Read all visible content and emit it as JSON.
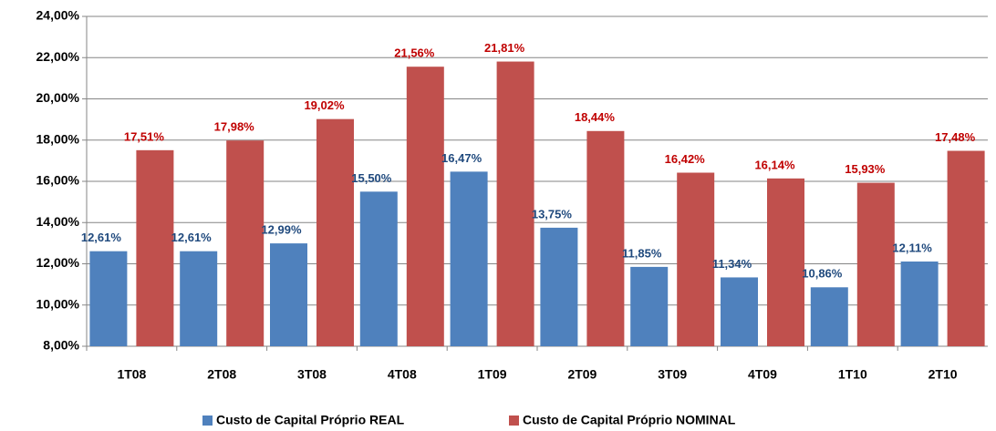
{
  "chart_data": {
    "type": "bar",
    "categories": [
      "1T08",
      "2T08",
      "3T08",
      "4T08",
      "1T09",
      "2T09",
      "3T09",
      "4T09",
      "1T10",
      "2T10"
    ],
    "series": [
      {
        "name": "Custo de Capital Próprio REAL",
        "color": "#4f81bd",
        "label_color": "#1f497d",
        "values": [
          12.61,
          12.61,
          12.99,
          15.5,
          16.47,
          13.75,
          11.85,
          11.34,
          10.86,
          12.11
        ],
        "value_labels": [
          "12,61%",
          "12,61%",
          "12,99%",
          "15,50%",
          "16,47%",
          "13,75%",
          "11,85%",
          "11,34%",
          "10,86%",
          "12,11%"
        ]
      },
      {
        "name": "Custo de Capital Próprio NOMINAL",
        "color": "#c0504d",
        "label_color": "#c00000",
        "values": [
          17.51,
          17.98,
          19.02,
          21.56,
          21.81,
          18.44,
          16.42,
          16.14,
          15.93,
          17.48
        ],
        "value_labels": [
          "17,51%",
          "17,98%",
          "19,02%",
          "21,56%",
          "21,81%",
          "18,44%",
          "16,42%",
          "16,14%",
          "15,93%",
          "17,48%"
        ]
      }
    ],
    "ylim": [
      8,
      24
    ],
    "yticks": [
      {
        "value": 8,
        "label": "8,00%"
      },
      {
        "value": 10,
        "label": "10,00%"
      },
      {
        "value": 12,
        "label": "12,00%"
      },
      {
        "value": 14,
        "label": "14,00%"
      },
      {
        "value": 16,
        "label": "16,00%"
      },
      {
        "value": 18,
        "label": "18,00%"
      },
      {
        "value": 20,
        "label": "20,00%"
      },
      {
        "value": 22,
        "label": "22,00%"
      },
      {
        "value": 24,
        "label": "24,00%"
      }
    ],
    "grid": true
  }
}
